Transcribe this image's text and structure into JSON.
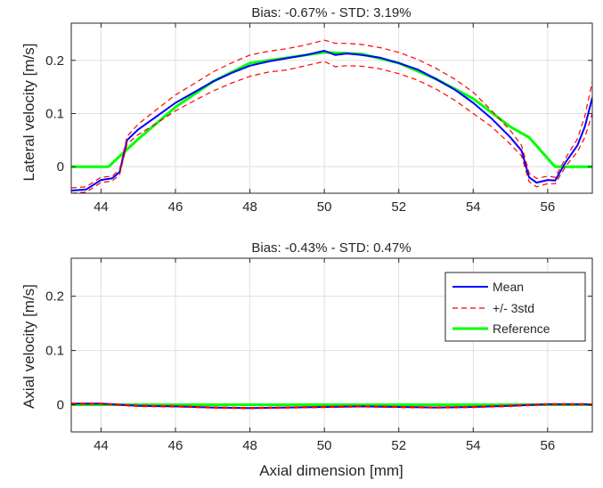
{
  "colors": {
    "mean": "#0000ff",
    "std": "#ff0000",
    "reference": "#00ff00",
    "axis": "#262626",
    "grid": "#dfdfdf"
  },
  "shared_x": {
    "label": "Axial dimension [mm]",
    "ticks": [
      44,
      46,
      48,
      50,
      52,
      54,
      56
    ],
    "tick_labels": [
      "44",
      "46",
      "48",
      "50",
      "52",
      "54",
      "56"
    ],
    "range": [
      43.2,
      57.2
    ]
  },
  "chart_data": [
    {
      "type": "line",
      "title": "Bias: -0.67% - STD: 3.19%",
      "xlabel": "",
      "ylabel": "Lateral velocity [m/s]",
      "xlim": [
        43.2,
        57.2
      ],
      "ylim": [
        -0.05,
        0.27
      ],
      "yticks": [
        0,
        0.1,
        0.2
      ],
      "ytick_labels": [
        "0",
        "0.1",
        "0.2"
      ],
      "grid": true,
      "legend": null,
      "series": [
        {
          "name": "Reference",
          "style": "solid",
          "color": "#00ff00",
          "x": [
            43.2,
            44.2,
            45,
            46,
            47,
            48,
            49,
            50,
            51,
            52,
            53,
            54,
            55,
            55.5,
            56.2,
            57.2
          ],
          "y": [
            0,
            0,
            0.052,
            0.112,
            0.16,
            0.195,
            0.205,
            0.215,
            0.212,
            0.195,
            0.165,
            0.128,
            0.075,
            0.055,
            0,
            0
          ]
        },
        {
          "name": "Mean",
          "style": "solid",
          "color": "#0000ff",
          "x": [
            43.2,
            43.6,
            44,
            44.3,
            44.5,
            44.7,
            45,
            45.5,
            46,
            46.5,
            47,
            47.5,
            48,
            48.5,
            49,
            49.5,
            50,
            50.3,
            50.6,
            51,
            51.5,
            52,
            52.5,
            53,
            53.5,
            54,
            54.5,
            55,
            55.3,
            55.5,
            55.7,
            56,
            56.2,
            56.5,
            56.8,
            57,
            57.2
          ],
          "y": [
            -0.045,
            -0.043,
            -0.025,
            -0.022,
            -0.01,
            0.05,
            0.07,
            0.095,
            0.12,
            0.14,
            0.16,
            0.176,
            0.19,
            0.198,
            0.204,
            0.21,
            0.218,
            0.21,
            0.213,
            0.21,
            0.205,
            0.195,
            0.183,
            0.165,
            0.145,
            0.12,
            0.09,
            0.055,
            0.03,
            -0.02,
            -0.03,
            -0.025,
            -0.026,
            0.01,
            0.04,
            0.075,
            0.13
          ]
        },
        {
          "name": "+/- 3std",
          "style": "dashed",
          "color": "#ff0000",
          "x": [
            43.2,
            43.6,
            44,
            44.3,
            44.5,
            44.7,
            45,
            45.5,
            46,
            46.5,
            47,
            47.5,
            48,
            48.5,
            49,
            49.5,
            50,
            50.3,
            50.6,
            51,
            51.5,
            52,
            52.5,
            53,
            53.5,
            54,
            54.5,
            55,
            55.3,
            55.5,
            55.7,
            56,
            56.2,
            56.5,
            56.8,
            57,
            57.2
          ],
          "y": [
            -0.04,
            -0.038,
            -0.02,
            -0.018,
            -0.005,
            0.057,
            0.08,
            0.108,
            0.135,
            0.156,
            0.178,
            0.195,
            0.21,
            0.217,
            0.222,
            0.229,
            0.238,
            0.232,
            0.232,
            0.23,
            0.224,
            0.215,
            0.202,
            0.185,
            0.165,
            0.14,
            0.105,
            0.068,
            0.04,
            -0.012,
            -0.022,
            -0.018,
            -0.02,
            0.018,
            0.052,
            0.095,
            0.16
          ]
        },
        {
          "name": "+/- 3std",
          "style": "dashed",
          "color": "#ff0000",
          "x": [
            43.2,
            43.6,
            44,
            44.3,
            44.5,
            44.7,
            45,
            45.5,
            46,
            46.5,
            47,
            47.5,
            48,
            48.5,
            49,
            49.5,
            50,
            50.3,
            50.6,
            51,
            51.5,
            52,
            52.5,
            53,
            53.5,
            54,
            54.5,
            55,
            55.3,
            55.5,
            55.7,
            56,
            56.2,
            56.5,
            56.8,
            57,
            57.2
          ],
          "y": [
            -0.05,
            -0.048,
            -0.03,
            -0.027,
            -0.015,
            0.043,
            0.06,
            0.082,
            0.105,
            0.124,
            0.142,
            0.157,
            0.17,
            0.178,
            0.182,
            0.19,
            0.198,
            0.188,
            0.19,
            0.189,
            0.184,
            0.175,
            0.163,
            0.146,
            0.125,
            0.1,
            0.075,
            0.042,
            0.02,
            -0.028,
            -0.038,
            -0.032,
            -0.032,
            0.002,
            0.028,
            0.055,
            0.1
          ]
        }
      ]
    },
    {
      "type": "line",
      "title": "Bias: -0.43% - STD: 0.47%",
      "xlabel": "Axial dimension [mm]",
      "ylabel": "Axial velocity [m/s]",
      "xlim": [
        43.2,
        57.2
      ],
      "ylim": [
        -0.05,
        0.27
      ],
      "yticks": [
        0,
        0.1,
        0.2
      ],
      "ytick_labels": [
        "0",
        "0.1",
        "0.2"
      ],
      "grid": true,
      "legend": {
        "placement": "top-right",
        "entries": [
          "Mean",
          "+/- 3std",
          "Reference"
        ]
      },
      "series": [
        {
          "name": "Reference",
          "style": "solid",
          "color": "#00ff00",
          "x": [
            43.2,
            57.2
          ],
          "y": [
            0,
            0
          ]
        },
        {
          "name": "Mean",
          "style": "solid",
          "color": "#0000ff",
          "x": [
            43.2,
            44,
            45,
            46,
            47,
            48,
            49,
            50,
            51,
            52,
            53,
            54,
            55,
            56,
            57,
            57.2
          ],
          "y": [
            0.002,
            0.002,
            -0.002,
            -0.003,
            -0.005,
            -0.006,
            -0.005,
            -0.004,
            -0.003,
            -0.004,
            -0.005,
            -0.004,
            -0.002,
            0.001,
            0.001,
            0
          ]
        },
        {
          "name": "+/- 3std",
          "style": "dashed",
          "color": "#ff0000",
          "x": [
            43.2,
            44,
            45,
            46,
            47,
            48,
            49,
            50,
            51,
            52,
            53,
            54,
            55,
            56,
            57,
            57.2
          ],
          "y": [
            0.003,
            0.003,
            -0.001,
            -0.002,
            -0.004,
            -0.005,
            -0.004,
            -0.003,
            -0.002,
            -0.003,
            -0.004,
            -0.003,
            -0.001,
            0.002,
            0.002,
            0.001
          ]
        },
        {
          "name": "+/- 3std",
          "style": "dashed",
          "color": "#ff0000",
          "x": [
            43.2,
            44,
            45,
            46,
            47,
            48,
            49,
            50,
            51,
            52,
            53,
            54,
            55,
            56,
            57,
            57.2
          ],
          "y": [
            0.001,
            0.001,
            -0.003,
            -0.004,
            -0.006,
            -0.007,
            -0.006,
            -0.005,
            -0.004,
            -0.005,
            -0.006,
            -0.005,
            -0.003,
            0,
            0,
            -0.001
          ]
        }
      ]
    }
  ]
}
